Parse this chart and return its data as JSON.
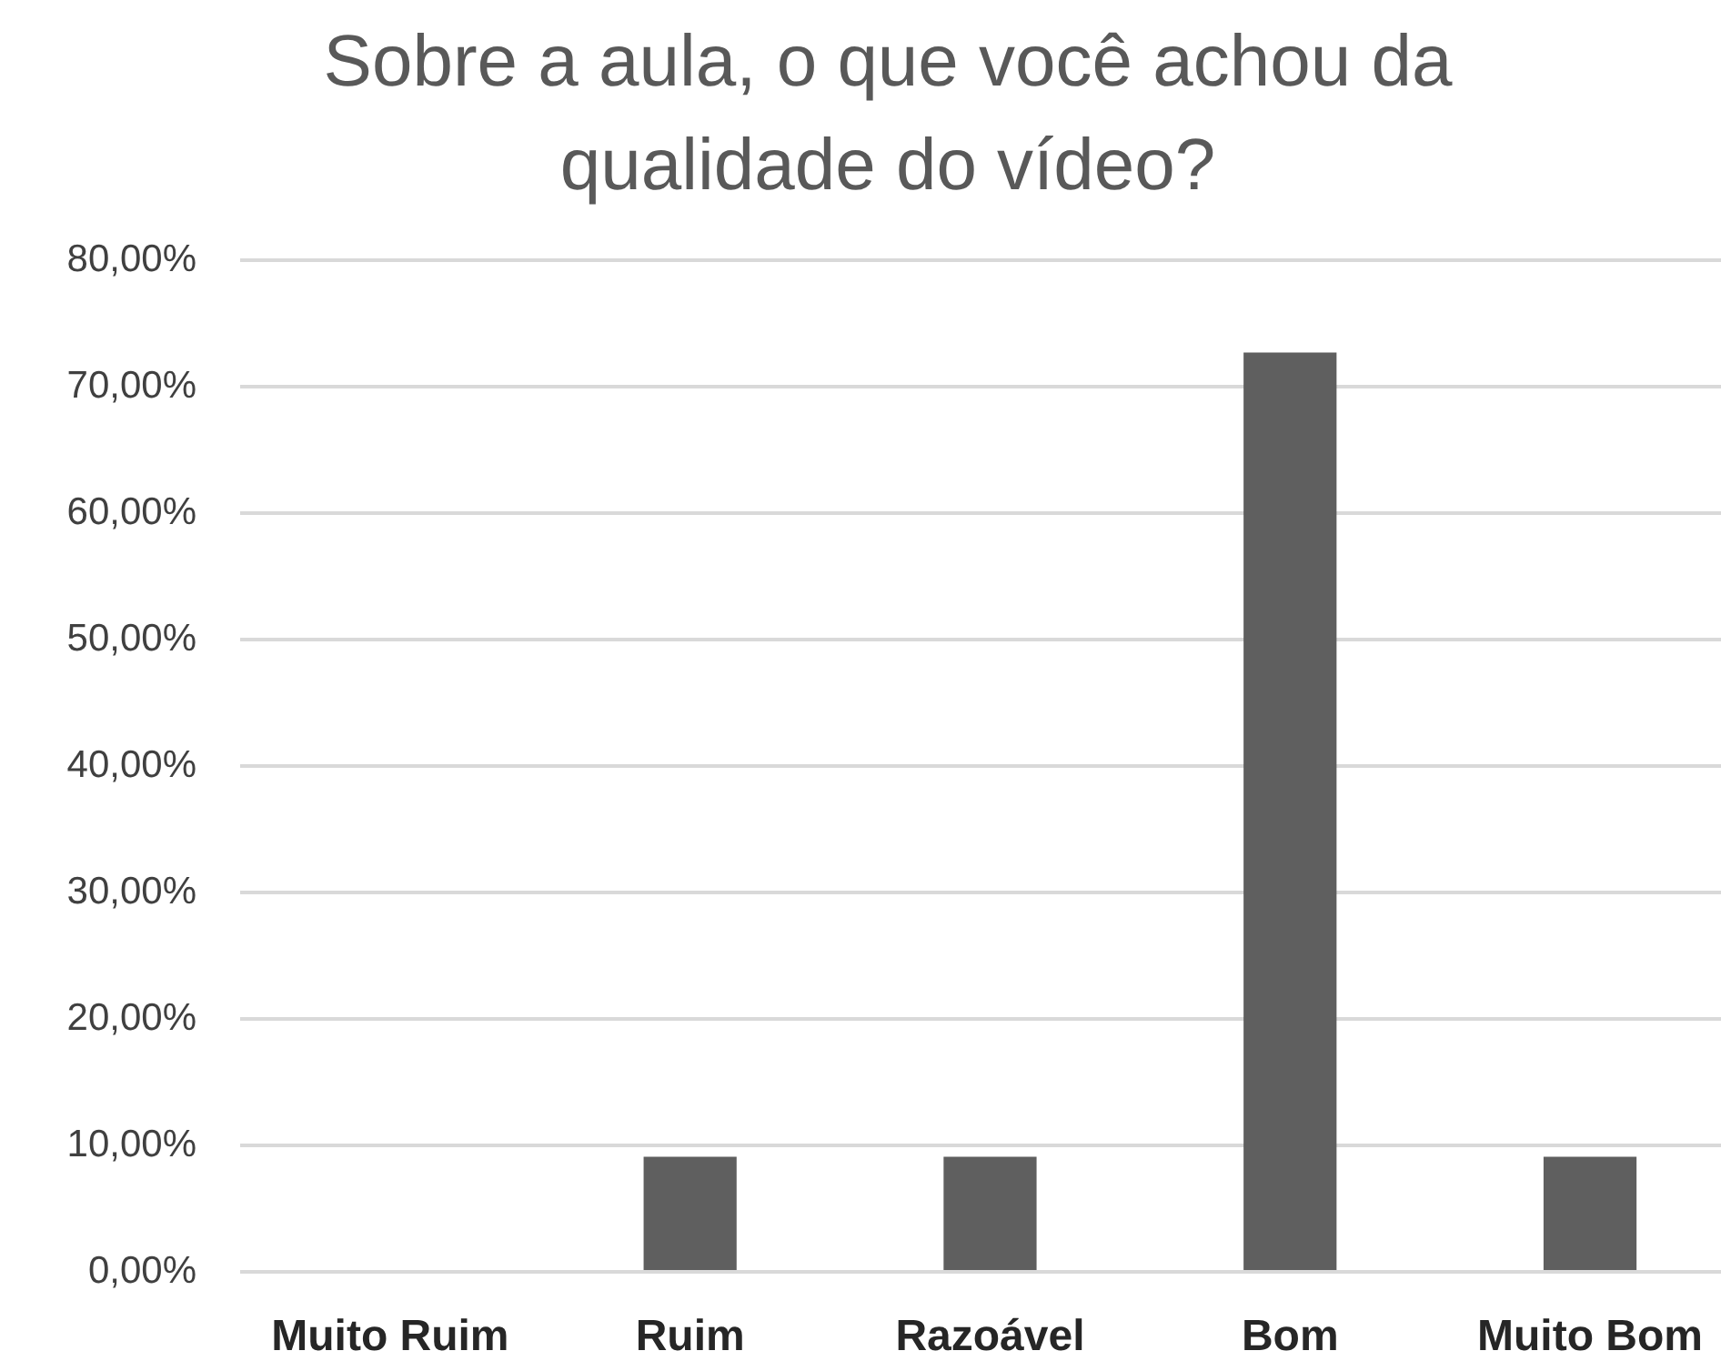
{
  "chart_data": {
    "type": "bar",
    "title": "Sobre a aula, o que você achou da qualidade do vídeo?",
    "categories": [
      "Muito Ruim",
      "Ruim",
      "Razoável",
      "Bom",
      "Muito Bom"
    ],
    "values": [
      0,
      9.1,
      9.1,
      72.7,
      9.1
    ],
    "color": "#5f5f5f",
    "ylim": [
      0,
      80
    ],
    "yticks": [
      {
        "value": 0,
        "label": "0,00%"
      },
      {
        "value": 10,
        "label": "10,00%"
      },
      {
        "value": 20,
        "label": "20,00%"
      },
      {
        "value": 30,
        "label": "30,00%"
      },
      {
        "value": 40,
        "label": "40,00%"
      },
      {
        "value": 50,
        "label": "50,00%"
      },
      {
        "value": 60,
        "label": "60,00%"
      },
      {
        "value": 70,
        "label": "70,00%"
      },
      {
        "value": 80,
        "label": "80,00%"
      }
    ],
    "grid": "y"
  }
}
